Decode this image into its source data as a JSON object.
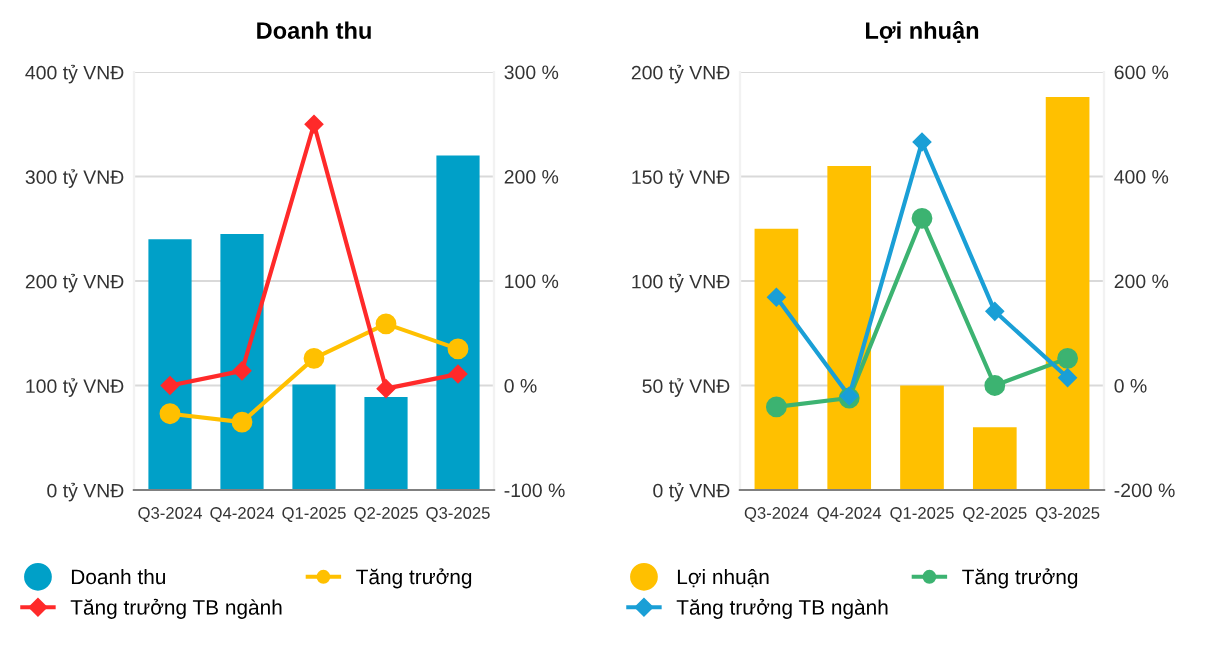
{
  "chart_data": [
    {
      "type": "bar",
      "title": "Doanh thu",
      "categories": [
        "Q3-2024",
        "Q4-2024",
        "Q1-2025",
        "Q2-2025",
        "Q3-2025"
      ],
      "series": [
        {
          "name": "Doanh thu",
          "color": "#00a0c8",
          "values": [
            240,
            245,
            101,
            89,
            320
          ]
        },
        {
          "name": "Tăng trưởng",
          "type": "line",
          "axis": "y2",
          "marker": "circle",
          "color": "#ffc000",
          "values": [
            -27,
            -35,
            26,
            59,
            35
          ]
        },
        {
          "name": "Tăng trưởng TB ngành",
          "type": "line",
          "axis": "y2",
          "marker": "diamond",
          "color": "#ff2a2a",
          "values": [
            0,
            14,
            250,
            -3,
            11
          ]
        }
      ],
      "ylim": [
        0,
        400
      ],
      "yticks": [
        {
          "value": 0,
          "label": "0 tỷ VNĐ"
        },
        {
          "value": 100,
          "label": "100 tỷ VNĐ"
        },
        {
          "value": 200,
          "label": "200 tỷ VNĐ"
        },
        {
          "value": 300,
          "label": "300 tỷ VNĐ"
        },
        {
          "value": 400,
          "label": "400 tỷ VNĐ"
        }
      ],
      "y2lim": [
        -100,
        300
      ],
      "y2ticks": [
        {
          "value": -100,
          "label": "-100 %"
        },
        {
          "value": 0,
          "label": "0 %"
        },
        {
          "value": 100,
          "label": "100 %"
        },
        {
          "value": 200,
          "label": "200 %"
        },
        {
          "value": 300,
          "label": "300 %"
        }
      ],
      "grid": "y",
      "legend": "bottom"
    },
    {
      "type": "bar",
      "title": "Lợi nhuận",
      "categories": [
        "Q3-2024",
        "Q4-2024",
        "Q1-2025",
        "Q2-2025",
        "Q3-2025"
      ],
      "series": [
        {
          "name": "Lợi nhuận",
          "color": "#ffc000",
          "values": [
            125,
            155,
            50,
            30,
            188
          ]
        },
        {
          "name": "Tăng trưởng",
          "type": "line",
          "axis": "y2",
          "marker": "circle",
          "color": "#3cb371",
          "values": [
            -41,
            -24,
            320,
            0,
            52
          ]
        },
        {
          "name": "Tăng trưởng TB ngành",
          "type": "line",
          "axis": "y2",
          "marker": "diamond",
          "color": "#1a9fd6",
          "values": [
            169,
            -20,
            466,
            142,
            15
          ]
        }
      ],
      "ylim": [
        0,
        200
      ],
      "yticks": [
        {
          "value": 0,
          "label": "0 tỷ VNĐ"
        },
        {
          "value": 50,
          "label": "50 tỷ VNĐ"
        },
        {
          "value": 100,
          "label": "100 tỷ VNĐ"
        },
        {
          "value": 150,
          "label": "150 tỷ VNĐ"
        },
        {
          "value": 200,
          "label": "200 tỷ VNĐ"
        }
      ],
      "y2lim": [
        -200,
        600
      ],
      "y2ticks": [
        {
          "value": -200,
          "label": "-200 %"
        },
        {
          "value": 0,
          "label": "0 %"
        },
        {
          "value": 200,
          "label": "200 %"
        },
        {
          "value": 400,
          "label": "400 %"
        },
        {
          "value": 600,
          "label": "600 %"
        }
      ],
      "grid": "y",
      "legend": "bottom"
    }
  ]
}
